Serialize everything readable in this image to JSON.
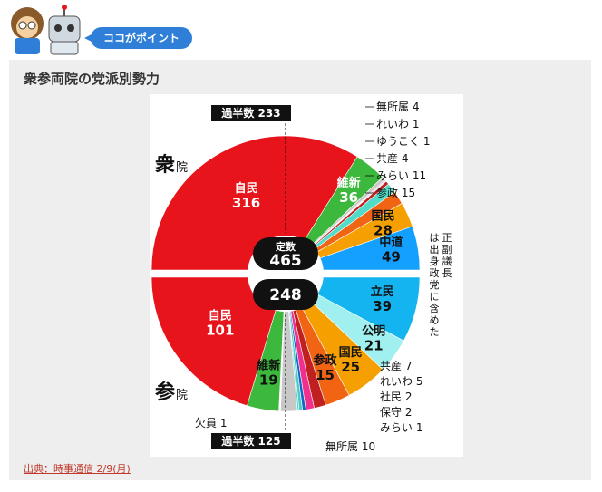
{
  "header": {
    "point_label": "ココがポイント"
  },
  "card": {
    "title": "衆参両院の党派別勢力",
    "source": "出典：時事通信 2/9(月)"
  },
  "chart_data": [
    {
      "type": "pie",
      "chamber": "衆院",
      "center_label": "定数",
      "total": 465,
      "majority_label": "過半数 233",
      "slices": [
        {
          "name": "自民",
          "value": 316,
          "color": "#e8141c"
        },
        {
          "name": "維新",
          "value": 36,
          "color": "#3cb83c"
        },
        {
          "name": "無所属",
          "value": 4,
          "color": "#c8c8c8"
        },
        {
          "name": "れいわ",
          "value": 1,
          "color": "#f0308c"
        },
        {
          "name": "ゆうこく",
          "value": 1,
          "color": "#a0d8f0"
        },
        {
          "name": "共産",
          "value": 4,
          "color": "#c02020"
        },
        {
          "name": "みらい",
          "value": 11,
          "color": "#50dcc8"
        },
        {
          "name": "参政",
          "value": 15,
          "color": "#f06414"
        },
        {
          "name": "国民",
          "value": 28,
          "color": "#f5a000"
        },
        {
          "name": "中道",
          "value": 49,
          "color": "#14a0ff"
        }
      ],
      "labels": [
        "無所属 4",
        "れいわ 1",
        "ゆうこく 1",
        "共産 4",
        "みらい 11",
        "参政 15"
      ],
      "note": "正副議長は出身政党に含めた"
    },
    {
      "type": "pie",
      "chamber": "参院",
      "total": 248,
      "majority_label": "過半数 125",
      "slices": [
        {
          "name": "立民",
          "value": 39,
          "color": "#14b4f0"
        },
        {
          "name": "公明",
          "value": 21,
          "color": "#a0f0f0"
        },
        {
          "name": "国民",
          "value": 25,
          "color": "#f5a000"
        },
        {
          "name": "参政",
          "value": 15,
          "color": "#f06414"
        },
        {
          "name": "共産",
          "value": 7,
          "color": "#c02020"
        },
        {
          "name": "れいわ",
          "value": 5,
          "color": "#f0308c"
        },
        {
          "name": "社民",
          "value": 2,
          "color": "#1464c8"
        },
        {
          "name": "保守",
          "value": 2,
          "color": "#50c8c8"
        },
        {
          "name": "みらい",
          "value": 1,
          "color": "#50dcc8"
        },
        {
          "name": "無所属",
          "value": 10,
          "color": "#c8c8c8"
        },
        {
          "name": "欠員",
          "value": 1,
          "color": "#ffffff"
        },
        {
          "name": "維新",
          "value": 19,
          "color": "#3cb83c"
        },
        {
          "name": "自民",
          "value": 101,
          "color": "#e8141c"
        }
      ],
      "labels": [
        "共産 7",
        "れいわ 5",
        "社民 2",
        "保守 2",
        "みらい 1",
        "無所属 10",
        "欠員 1"
      ]
    }
  ]
}
